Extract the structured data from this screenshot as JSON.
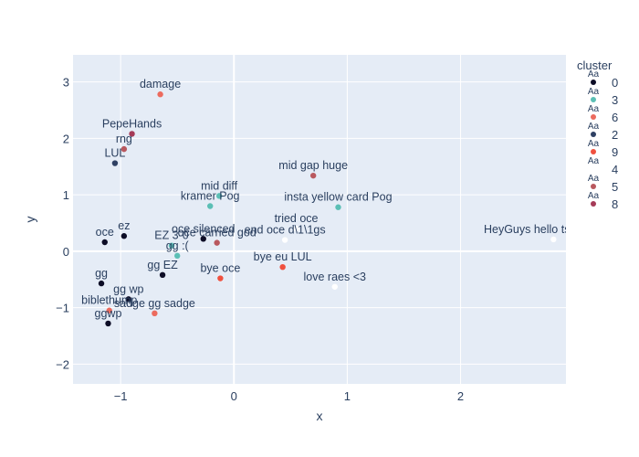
{
  "chart_data": {
    "type": "scatter",
    "title": "",
    "xlabel": "x",
    "ylabel": "y",
    "xlim": [
      -1.42,
      2.93
    ],
    "ylim": [
      -2.35,
      3.48
    ],
    "x_ticks": [
      -1,
      0,
      1,
      2
    ],
    "y_ticks": [
      -2,
      -1,
      0,
      1,
      2,
      3
    ],
    "grid": true,
    "legend": {
      "title": "cluster",
      "placement": "right",
      "symbol_text": "Aa",
      "entries": [
        {
          "name": "0",
          "color": "#0d0d26"
        },
        {
          "name": "3",
          "color": "#5bbfb5"
        },
        {
          "name": "6",
          "color": "#ec6b5e"
        },
        {
          "name": "2",
          "color": "#2e4063"
        },
        {
          "name": "9",
          "color": "#f0503e"
        },
        {
          "name": "4",
          "color": "#ffffff"
        },
        {
          "name": "5",
          "color": "#b9585e"
        },
        {
          "name": "8",
          "color": "#a53a57"
        }
      ]
    },
    "points": [
      {
        "label": "damage",
        "x": -0.65,
        "y": 2.78,
        "cluster": "6"
      },
      {
        "label": "PepeHands",
        "x": -0.9,
        "y": 2.08,
        "cluster": "8"
      },
      {
        "label": "rng",
        "x": -0.97,
        "y": 1.81,
        "cluster": "5"
      },
      {
        "label": "LUL",
        "x": -1.05,
        "y": 1.56,
        "cluster": "2"
      },
      {
        "label": "mid gap huge",
        "x": 0.7,
        "y": 1.34,
        "cluster": "5"
      },
      {
        "label": "mid diff",
        "x": -0.13,
        "y": 0.98,
        "cluster": "3"
      },
      {
        "label": "kramer Pog",
        "x": -0.21,
        "y": 0.8,
        "cluster": "3"
      },
      {
        "label": "insta yellow card Pog",
        "x": 0.92,
        "y": 0.78,
        "cluster": "3"
      },
      {
        "label": "tried oce",
        "x": 0.55,
        "y": 0.4,
        "cluster": "4"
      },
      {
        "label": "end oce d\\1\\1gs",
        "x": 0.45,
        "y": 0.2,
        "cluster": "4"
      },
      {
        "label": "HeyGuys hello tsm ' lgd ' lol",
        "x": 2.82,
        "y": 0.21,
        "cluster": "4"
      },
      {
        "label": "oce",
        "x": -1.14,
        "y": 0.16,
        "cluster": "0"
      },
      {
        "label": "ez",
        "x": -0.97,
        "y": 0.27,
        "cluster": "0"
      },
      {
        "label": "oce silenced",
        "x": -0.27,
        "y": 0.22,
        "cluster": "0"
      },
      {
        "label": "oce carried god",
        "x": -0.15,
        "y": 0.15,
        "cluster": "5"
      },
      {
        "label": "EZ 3-0",
        "x": -0.55,
        "y": 0.1,
        "cluster": "3"
      },
      {
        "label": "gg :(",
        "x": -0.5,
        "y": -0.08,
        "cluster": "3"
      },
      {
        "label": "bye eu LUL",
        "x": 0.43,
        "y": -0.28,
        "cluster": "9"
      },
      {
        "label": "gg",
        "x": -1.17,
        "y": -0.57,
        "cluster": "0"
      },
      {
        "label": "gg EZ",
        "x": -0.63,
        "y": -0.42,
        "cluster": "0"
      },
      {
        "label": "bye oce",
        "x": -0.12,
        "y": -0.48,
        "cluster": "9"
      },
      {
        "label": "love raes <3",
        "x": 0.89,
        "y": -0.63,
        "cluster": "4"
      },
      {
        "label": "gg wp",
        "x": -0.93,
        "y": -0.85,
        "cluster": "0"
      },
      {
        "label": "biblethump",
        "x": -1.1,
        "y": -1.05,
        "cluster": "6"
      },
      {
        "label": "sadge gg sadge",
        "x": -0.7,
        "y": -1.1,
        "cluster": "6"
      },
      {
        "label": "ggwp",
        "x": -1.11,
        "y": -1.28,
        "cluster": "0"
      }
    ]
  }
}
